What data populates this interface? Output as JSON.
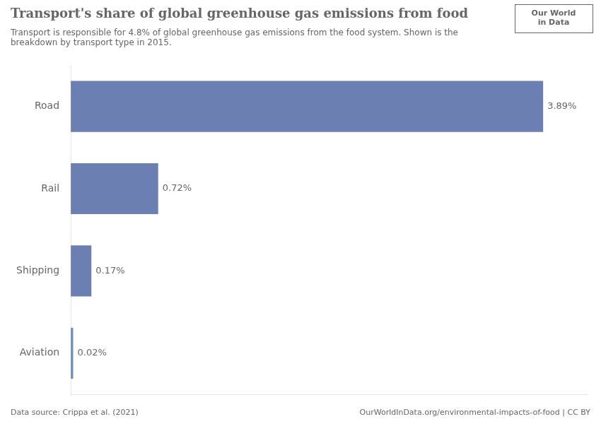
{
  "chart_data": {
    "type": "bar",
    "orientation": "horizontal",
    "title": "Transport's share of global greenhouse gas emissions from food",
    "subtitle": "Transport is responsible for 4.8% of global greenhouse gas emissions from the food system. Shown is the\nbreakdown by transport type in 2015.",
    "categories": [
      "Road",
      "Rail",
      "Shipping",
      "Aviation"
    ],
    "values": [
      3.89,
      0.72,
      0.17,
      0.02
    ],
    "value_labels": [
      "3.89%",
      "0.72%",
      "0.17%",
      "0.02%"
    ],
    "data_labels": true,
    "colors": [
      "#6b7fb3",
      "#6b7fb3",
      "#6b7fb3",
      "#7090c0"
    ],
    "xlim": [
      0,
      4.25
    ],
    "tick_labels": "y",
    "grid": false,
    "annotations": [
      "Our World\nin Data",
      "Data source: Crippa et al. (2021)",
      "OurWorldInData.org/environmental-impacts-of-food | CC BY"
    ]
  }
}
